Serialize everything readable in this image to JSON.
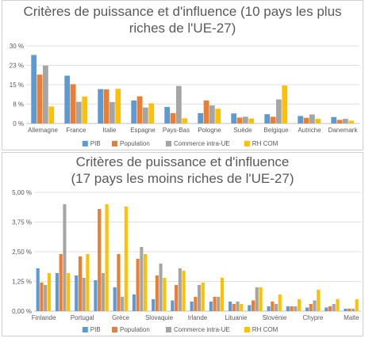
{
  "chart_data": [
    {
      "type": "bar",
      "title_line1": "Critères de puissance et d'influence (10 pays les plus",
      "title_line2": "riches de l'UE-27)",
      "categories": [
        "Allemagne",
        "France",
        "Italie",
        "Espagne",
        "Pays-Bas",
        "Pologne",
        "Suède",
        "Belgique",
        "Autriche",
        "Danemark"
      ],
      "series": [
        {
          "name": "PIB",
          "color": "#5b9bd5",
          "values": [
            26.5,
            18.5,
            13.3,
            8.9,
            6.4,
            4.0,
            3.9,
            3.6,
            2.9,
            2.5
          ]
        },
        {
          "name": "Population",
          "color": "#ed7d31",
          "values": [
            18.9,
            15.2,
            13.2,
            10.5,
            4.0,
            8.9,
            2.3,
            2.6,
            2.2,
            1.4
          ]
        },
        {
          "name": "Commerce intra-UE",
          "color": "#a5a5a5",
          "values": [
            22.4,
            8.4,
            8.3,
            6.2,
            14.5,
            7.0,
            2.6,
            9.3,
            3.5,
            1.8
          ]
        },
        {
          "name": "RH COM",
          "color": "#ffc000",
          "values": [
            6.6,
            10.4,
            13.4,
            7.8,
            2.0,
            5.7,
            1.9,
            14.7,
            1.8,
            1.1
          ]
        }
      ],
      "yticks": [
        "0 %",
        "8 %",
        "15 %",
        "23 %",
        "30 %"
      ],
      "ylim": [
        0,
        30
      ]
    },
    {
      "type": "bar",
      "title_line1": "Critères de puissance et d'influence",
      "title_line2": "(17 pays les moins riches de l'UE-27)",
      "x_labels": [
        "Finlande",
        "Portugal",
        "Grèce",
        "Slovaquie",
        "Irlande",
        "Lituanie",
        "Slovénie",
        "Chypre",
        "Malte"
      ],
      "series": [
        {
          "name": "PIB",
          "color": "#5b9bd5",
          "values": [
            1.8,
            1.6,
            1.5,
            1.3,
            1.0,
            0.7,
            0.5,
            0.45,
            0.4,
            0.4,
            0.4,
            0.25,
            0.2,
            0.2,
            0.15,
            0.15,
            0.1
          ]
        },
        {
          "name": "Population",
          "color": "#ed7d31",
          "values": [
            1.2,
            2.4,
            2.3,
            4.3,
            2.4,
            2.2,
            1.5,
            1.1,
            0.6,
            0.6,
            0.3,
            0.45,
            0.4,
            0.2,
            0.3,
            0.2,
            0.1
          ]
        },
        {
          "name": "Commerce intra-UE",
          "color": "#a5a5a5",
          "values": [
            1.1,
            4.5,
            1.4,
            1.6,
            0.6,
            2.7,
            2.0,
            1.8,
            1.1,
            0.6,
            0.4,
            1.0,
            0.3,
            0.2,
            0.45,
            0.3,
            0.1
          ]
        },
        {
          "name": "RH COM",
          "color": "#ffc000",
          "values": [
            1.6,
            1.6,
            2.4,
            4.5,
            4.4,
            2.4,
            1.4,
            1.7,
            1.2,
            1.4,
            0.3,
            1.0,
            0.7,
            0.5,
            0.9,
            0.5,
            0.5
          ]
        }
      ],
      "yticks": [
        "0,00 %",
        "1,25 %",
        "2,50 %",
        "3,75 %",
        "5,00 %"
      ],
      "ylim": [
        0,
        5
      ]
    }
  ]
}
